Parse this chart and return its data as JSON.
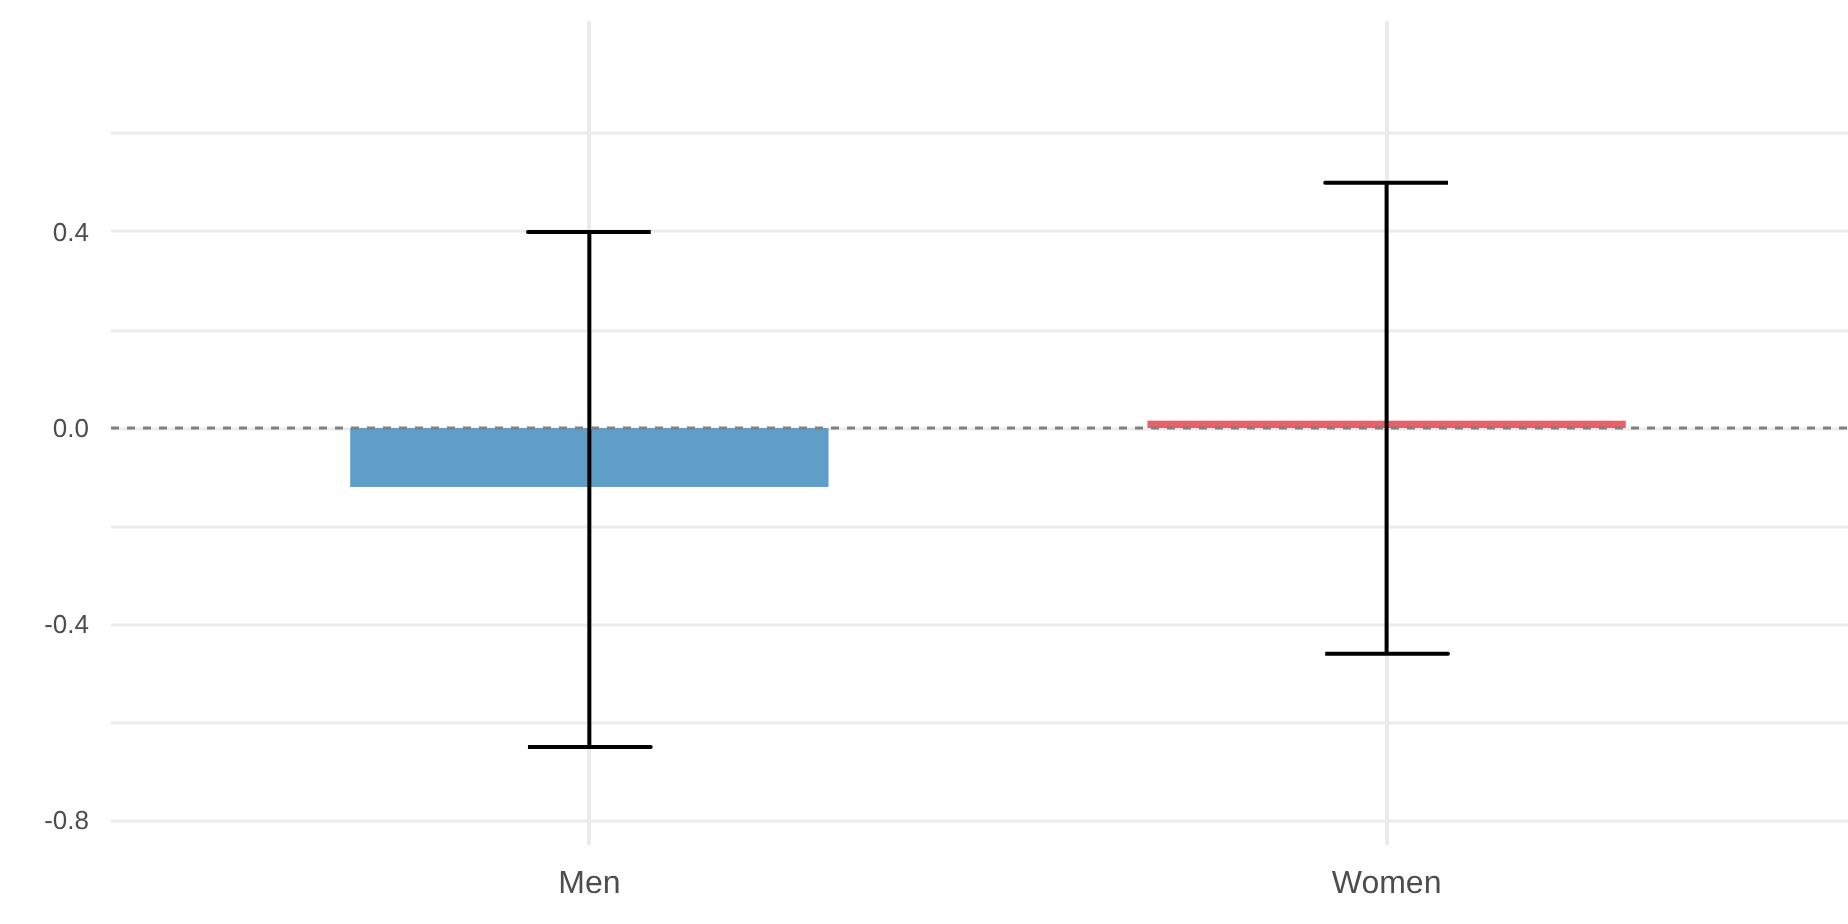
{
  "chart_data": {
    "type": "bar",
    "categories": [
      "Men",
      "Women"
    ],
    "values": [
      -0.12,
      0.015
    ],
    "colors": [
      "#5f9ec9",
      "#e5606a"
    ],
    "errors": [
      [
        -0.65,
        0.4
      ],
      [
        -0.46,
        0.5
      ]
    ],
    "ylim": [
      -0.85,
      0.83
    ],
    "yticks": [
      -0.8,
      {
        "value": -0.6,
        "label": null
      },
      -0.4,
      {
        "value": -0.2,
        "label": null
      },
      {
        "value": 0,
        "label": "0.0"
      },
      {
        "value": 0.2,
        "label": null
      },
      0.4,
      {
        "value": 0.6,
        "label": null
      }
    ],
    "ref_lines": [
      {
        "axis": "y",
        "value": 0,
        "label": null,
        "color": "#808080",
        "line_style": "dashed"
      }
    ],
    "grid": true
  }
}
